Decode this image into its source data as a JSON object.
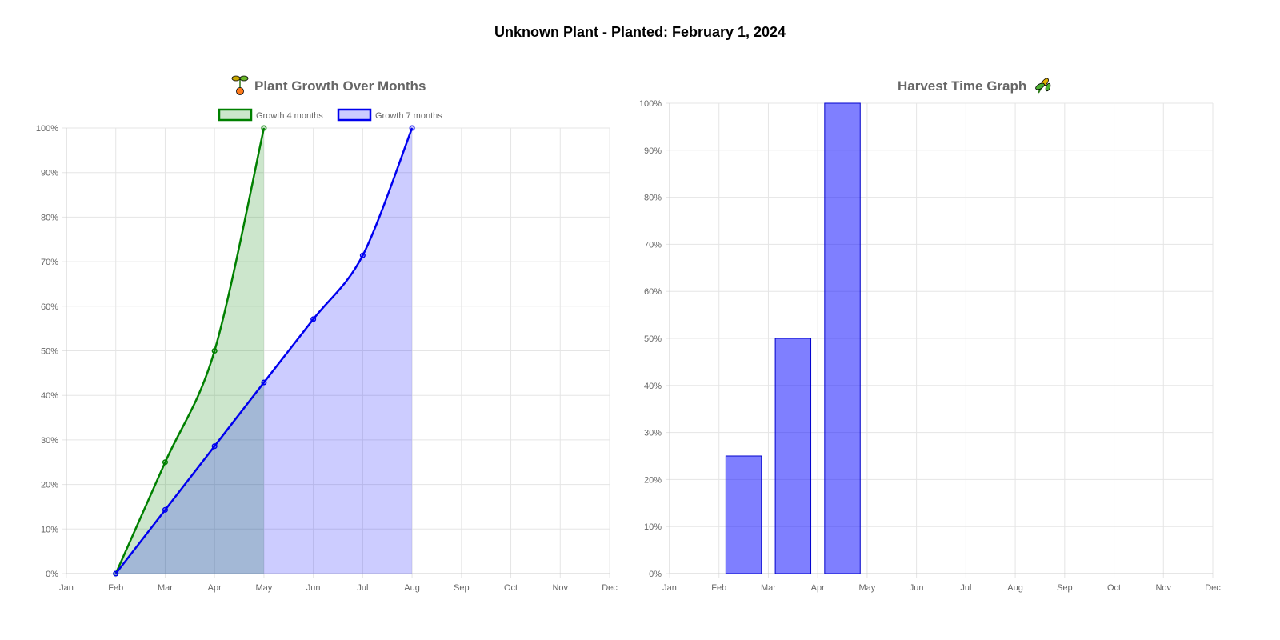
{
  "page": {
    "title": "Unknown Plant - Planted: February 1, 2024"
  },
  "chart_data": [
    {
      "type": "line",
      "title": "Plant Growth Over Months",
      "title_icon": "sprout-icon",
      "categories": [
        "Jan",
        "Feb",
        "Mar",
        "Apr",
        "May",
        "Jun",
        "Jul",
        "Aug",
        "Sep",
        "Oct",
        "Nov",
        "Dec"
      ],
      "y_ticks": [
        "0%",
        "10%",
        "20%",
        "30%",
        "40%",
        "50%",
        "60%",
        "70%",
        "80%",
        "90%",
        "100%"
      ],
      "ylim": [
        0,
        100
      ],
      "grid": true,
      "legend": "top",
      "series": [
        {
          "name": "Growth 4 months",
          "color": "#008000",
          "fill": "rgba(0,128,0,0.2)",
          "points": [
            [
              "Feb",
              0
            ],
            [
              "Mar",
              25
            ],
            [
              "Apr",
              50
            ],
            [
              "May",
              100
            ]
          ]
        },
        {
          "name": "Growth 7 months",
          "color": "#0000ee",
          "fill": "rgba(0,0,255,0.2)",
          "points": [
            [
              "Feb",
              0
            ],
            [
              "Mar",
              14.3
            ],
            [
              "Apr",
              28.6
            ],
            [
              "May",
              42.9
            ],
            [
              "Jun",
              57.1
            ],
            [
              "Jul",
              71.4
            ],
            [
              "Aug",
              100
            ]
          ]
        }
      ]
    },
    {
      "type": "bar",
      "title": "Harvest Time Graph",
      "title_icon": "harvest-icon",
      "categories": [
        "Jan",
        "Feb",
        "Mar",
        "Apr",
        "May",
        "Jun",
        "Jul",
        "Aug",
        "Sep",
        "Oct",
        "Nov",
        "Dec"
      ],
      "y_ticks": [
        "0%",
        "10%",
        "20%",
        "30%",
        "40%",
        "50%",
        "60%",
        "70%",
        "80%",
        "90%",
        "100%"
      ],
      "ylim": [
        0,
        100
      ],
      "grid": true,
      "bar_color": "rgba(0,0,255,0.5)",
      "bar_border": "#0000cc",
      "values": [
        0,
        0,
        25,
        50,
        100,
        0,
        0,
        0,
        0,
        0,
        0,
        0
      ]
    }
  ]
}
